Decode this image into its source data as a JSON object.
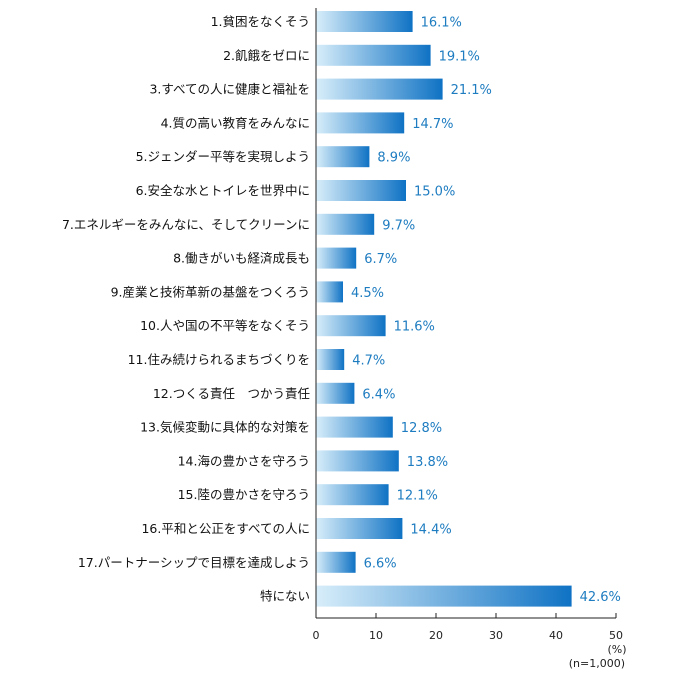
{
  "chart_data": {
    "type": "bar",
    "orientation": "horizontal",
    "categories": [
      "1.貧困をなくそう",
      "2.飢餓をゼロに",
      "3.すべての人に健康と福祉を",
      "4.質の高い教育をみんなに",
      "5.ジェンダー平等を実現しよう",
      "6.安全な水とトイレを世界中に",
      "7.エネルギーをみんなに、そしてクリーンに",
      "8.働きがいも経済成長も",
      "9.産業と技術革新の基盤をつくろう",
      "10.人や国の不平等をなくそう",
      "11.住み続けられるまちづくりを",
      "12.つくる責任　つかう責任",
      "13.気候変動に具体的な対策を",
      "14.海の豊かさを守ろう",
      "15.陸の豊かさを守ろう",
      "16.平和と公正をすべての人に",
      "17.パートナーシップで目標を達成しよう",
      "特にない"
    ],
    "values": [
      16.1,
      19.1,
      21.1,
      14.7,
      8.9,
      15.0,
      9.7,
      6.7,
      4.5,
      11.6,
      4.7,
      6.4,
      12.8,
      13.8,
      12.1,
      14.4,
      6.6,
      42.6
    ],
    "value_labels": [
      "16.1%",
      "19.1%",
      "21.1%",
      "14.7%",
      "8.9%",
      "15.0%",
      "9.7%",
      "6.7%",
      "4.5%",
      "11.6%",
      "4.7%",
      "6.4%",
      "12.8%",
      "13.8%",
      "12.1%",
      "14.4%",
      "6.6%",
      "42.6%"
    ],
    "xticks": [
      "0",
      "10",
      "20",
      "30",
      "40",
      "50"
    ],
    "xlim": [
      0,
      50
    ],
    "unit_label": "(%)",
    "sample_label": "(n=1,000)",
    "grid": false,
    "legend": "none"
  },
  "colors": {
    "bar_start": "#d8eefa",
    "bar_end": "#0f72c4",
    "value_text": "#1e7cc0",
    "axis": "#222222"
  }
}
